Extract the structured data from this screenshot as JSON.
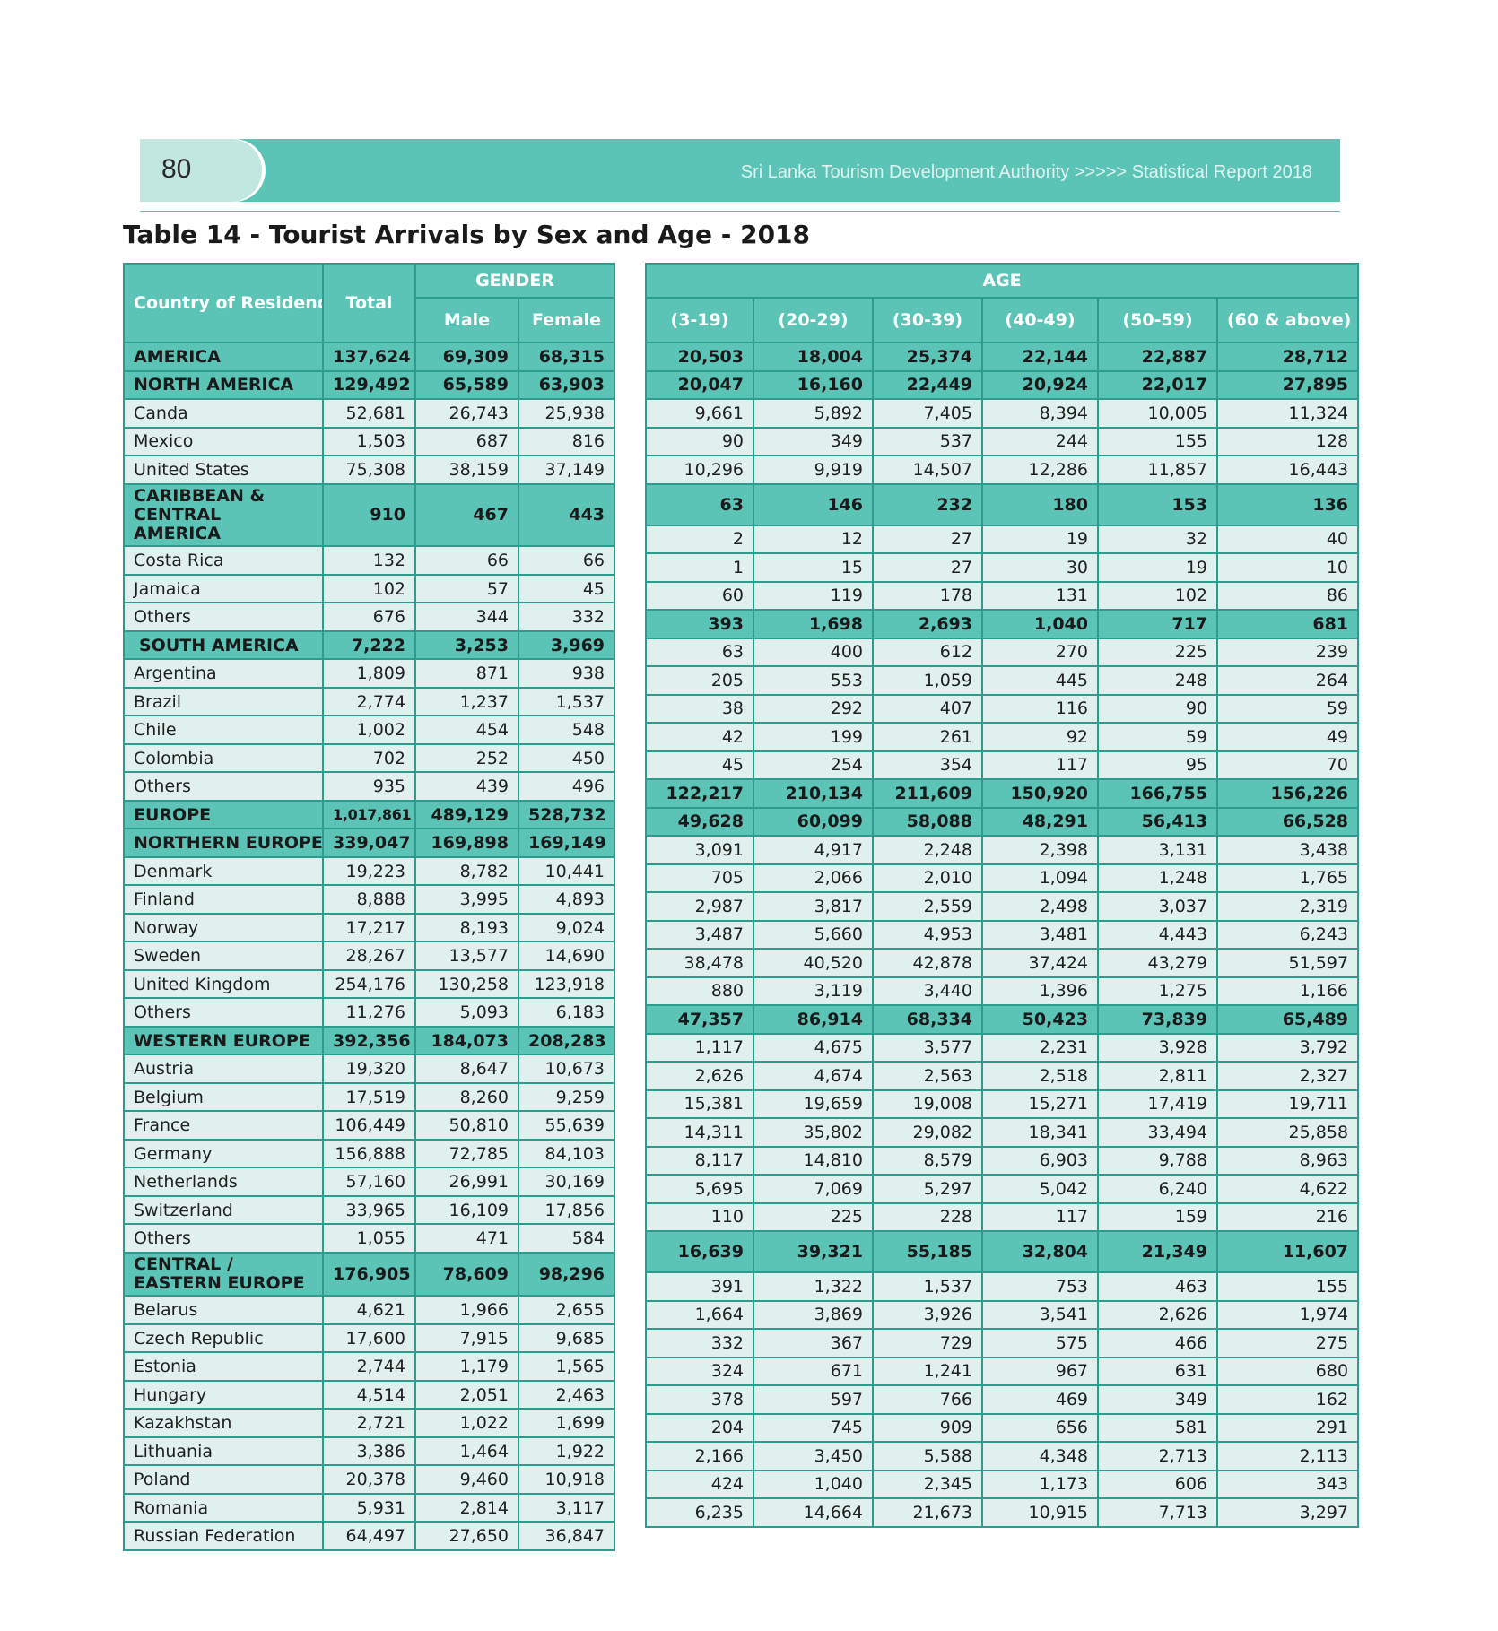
{
  "header": {
    "page_number": "80",
    "publication": "Sri Lanka Tourism Development Authority >>>>> Statistical Report 2018"
  },
  "title": "Table 14 - Tourist Arrivals by Sex and Age - 2018",
  "columns": {
    "country": "Country of Residence",
    "total": "Total",
    "gender_group": "GENDER",
    "male": "Male",
    "female": "Female",
    "age_group": "AGE",
    "age_bands": [
      "(3-19)",
      "(20-29)",
      "(30-39)",
      "(40-49)",
      "(50-59)",
      "(60 & above)"
    ]
  },
  "rows": [
    {
      "name": "AMERICA",
      "type": "region",
      "total": "137,624",
      "male": "69,309",
      "female": "68,315",
      "ages": [
        "20,503",
        "18,004",
        "25,374",
        "22,144",
        "22,887",
        "28,712"
      ]
    },
    {
      "name": "NORTH AMERICA",
      "type": "region",
      "total": "129,492",
      "male": "65,589",
      "female": "63,903",
      "ages": [
        "20,047",
        "16,160",
        "22,449",
        "20,924",
        "22,017",
        "27,895"
      ]
    },
    {
      "name": "Canda",
      "type": "country",
      "total": "52,681",
      "male": "26,743",
      "female": "25,938",
      "ages": [
        "9,661",
        "5,892",
        "7,405",
        "8,394",
        "10,005",
        "11,324"
      ]
    },
    {
      "name": "Mexico",
      "type": "country",
      "total": "1,503",
      "male": "687",
      "female": "816",
      "ages": [
        "90",
        "349",
        "537",
        "244",
        "155",
        "128"
      ]
    },
    {
      "name": "United States",
      "type": "country",
      "total": "75,308",
      "male": "38,159",
      "female": "37,149",
      "ages": [
        "10,296",
        "9,919",
        "14,507",
        "12,286",
        "11,857",
        "16,443"
      ]
    },
    {
      "name": "CARIBBEAN & CENTRAL AMERICA",
      "type": "region-wrap",
      "total": "910",
      "male": "467",
      "female": "443",
      "ages": [
        "63",
        "146",
        "232",
        "180",
        "153",
        "136"
      ]
    },
    {
      "name": "Costa Rica",
      "type": "country",
      "total": "132",
      "male": "66",
      "female": "66",
      "ages": [
        "2",
        "12",
        "27",
        "19",
        "32",
        "40"
      ]
    },
    {
      "name": "Jamaica",
      "type": "country",
      "total": "102",
      "male": "57",
      "female": "45",
      "ages": [
        "1",
        "15",
        "27",
        "30",
        "19",
        "10"
      ]
    },
    {
      "name": "Others",
      "type": "country",
      "total": "676",
      "male": "344",
      "female": "332",
      "ages": [
        "60",
        "119",
        "178",
        "131",
        "102",
        "86"
      ]
    },
    {
      "name": "SOUTH AMERICA",
      "type": "region-indent",
      "total": "7,222",
      "male": "3,253",
      "female": "3,969",
      "ages": [
        "393",
        "1,698",
        "2,693",
        "1,040",
        "717",
        "681"
      ]
    },
    {
      "name": "Argentina",
      "type": "country",
      "total": "1,809",
      "male": "871",
      "female": "938",
      "ages": [
        "63",
        "400",
        "612",
        "270",
        "225",
        "239"
      ]
    },
    {
      "name": "Brazil",
      "type": "country",
      "total": "2,774",
      "male": "1,237",
      "female": "1,537",
      "ages": [
        "205",
        "553",
        "1,059",
        "445",
        "248",
        "264"
      ]
    },
    {
      "name": "Chile",
      "type": "country",
      "total": "1,002",
      "male": "454",
      "female": "548",
      "ages": [
        "38",
        "292",
        "407",
        "116",
        "90",
        "59"
      ]
    },
    {
      "name": "Colombia",
      "type": "country",
      "total": "702",
      "male": "252",
      "female": "450",
      "ages": [
        "42",
        "199",
        "261",
        "92",
        "59",
        "49"
      ]
    },
    {
      "name": "Others",
      "type": "country",
      "total": "935",
      "male": "439",
      "female": "496",
      "ages": [
        "45",
        "254",
        "354",
        "117",
        "95",
        "70"
      ]
    },
    {
      "name": "EUROPE",
      "type": "region",
      "total": "1,017,861",
      "male": "489,129",
      "female": "528,732",
      "ages": [
        "122,217",
        "210,134",
        "211,609",
        "150,920",
        "166,755",
        "156,226"
      ]
    },
    {
      "name": "NORTHERN EUROPE",
      "type": "region",
      "total": "339,047",
      "male": "169,898",
      "female": "169,149",
      "ages": [
        "49,628",
        "60,099",
        "58,088",
        "48,291",
        "56,413",
        "66,528"
      ]
    },
    {
      "name": "Denmark",
      "type": "country",
      "total": "19,223",
      "male": "8,782",
      "female": "10,441",
      "ages": [
        "3,091",
        "4,917",
        "2,248",
        "2,398",
        "3,131",
        "3,438"
      ]
    },
    {
      "name": "Finland",
      "type": "country",
      "total": "8,888",
      "male": "3,995",
      "female": "4,893",
      "ages": [
        "705",
        "2,066",
        "2,010",
        "1,094",
        "1,248",
        "1,765"
      ]
    },
    {
      "name": "Norway",
      "type": "country",
      "total": "17,217",
      "male": "8,193",
      "female": "9,024",
      "ages": [
        "2,987",
        "3,817",
        "2,559",
        "2,498",
        "3,037",
        "2,319"
      ]
    },
    {
      "name": "Sweden",
      "type": "country",
      "total": "28,267",
      "male": "13,577",
      "female": "14,690",
      "ages": [
        "3,487",
        "5,660",
        "4,953",
        "3,481",
        "4,443",
        "6,243"
      ]
    },
    {
      "name": "United Kingdom",
      "type": "country",
      "total": "254,176",
      "male": "130,258",
      "female": "123,918",
      "ages": [
        "38,478",
        "40,520",
        "42,878",
        "37,424",
        "43,279",
        "51,597"
      ]
    },
    {
      "name": "Others",
      "type": "country",
      "total": "11,276",
      "male": "5,093",
      "female": "6,183",
      "ages": [
        "880",
        "3,119",
        "3,440",
        "1,396",
        "1,275",
        "1,166"
      ]
    },
    {
      "name": "WESTERN EUROPE",
      "type": "region",
      "total": "392,356",
      "male": "184,073",
      "female": "208,283",
      "ages": [
        "47,357",
        "86,914",
        "68,334",
        "50,423",
        "73,839",
        "65,489"
      ]
    },
    {
      "name": "Austria",
      "type": "country",
      "total": "19,320",
      "male": "8,647",
      "female": "10,673",
      "ages": [
        "1,117",
        "4,675",
        "3,577",
        "2,231",
        "3,928",
        "3,792"
      ]
    },
    {
      "name": "Belgium",
      "type": "country",
      "total": "17,519",
      "male": "8,260",
      "female": "9,259",
      "ages": [
        "2,626",
        "4,674",
        "2,563",
        "2,518",
        "2,811",
        "2,327"
      ]
    },
    {
      "name": "France",
      "type": "country",
      "total": "106,449",
      "male": "50,810",
      "female": "55,639",
      "ages": [
        "15,381",
        "19,659",
        "19,008",
        "15,271",
        "17,419",
        "19,711"
      ]
    },
    {
      "name": "Germany",
      "type": "country",
      "total": "156,888",
      "male": "72,785",
      "female": "84,103",
      "ages": [
        "14,311",
        "35,802",
        "29,082",
        "18,341",
        "33,494",
        "25,858"
      ]
    },
    {
      "name": "Netherlands",
      "type": "country",
      "total": "57,160",
      "male": "26,991",
      "female": "30,169",
      "ages": [
        "8,117",
        "14,810",
        "8,579",
        "6,903",
        "9,788",
        "8,963"
      ]
    },
    {
      "name": "Switzerland",
      "type": "country",
      "total": "33,965",
      "male": "16,109",
      "female": "17,856",
      "ages": [
        "5,695",
        "7,069",
        "5,297",
        "5,042",
        "6,240",
        "4,622"
      ]
    },
    {
      "name": "Others",
      "type": "country",
      "total": "1,055",
      "male": "471",
      "female": "584",
      "ages": [
        "110",
        "225",
        "228",
        "117",
        "159",
        "216"
      ]
    },
    {
      "name": "CENTRAL / EASTERN EUROPE",
      "type": "region-wrap",
      "total": "176,905",
      "male": "78,609",
      "female": "98,296",
      "ages": [
        "16,639",
        "39,321",
        "55,185",
        "32,804",
        "21,349",
        "11,607"
      ]
    },
    {
      "name": "Belarus",
      "type": "country",
      "total": "4,621",
      "male": "1,966",
      "female": "2,655",
      "ages": [
        "391",
        "1,322",
        "1,537",
        "753",
        "463",
        "155"
      ]
    },
    {
      "name": "Czech Republic",
      "type": "country",
      "total": "17,600",
      "male": "7,915",
      "female": "9,685",
      "ages": [
        "1,664",
        "3,869",
        "3,926",
        "3,541",
        "2,626",
        "1,974"
      ]
    },
    {
      "name": "Estonia",
      "type": "country",
      "total": "2,744",
      "male": "1,179",
      "female": "1,565",
      "ages": [
        "332",
        "367",
        "729",
        "575",
        "466",
        "275"
      ]
    },
    {
      "name": "Hungary",
      "type": "country",
      "total": "4,514",
      "male": "2,051",
      "female": "2,463",
      "ages": [
        "324",
        "671",
        "1,241",
        "967",
        "631",
        "680"
      ]
    },
    {
      "name": "Kazakhstan",
      "type": "country",
      "total": "2,721",
      "male": "1,022",
      "female": "1,699",
      "ages": [
        "378",
        "597",
        "766",
        "469",
        "349",
        "162"
      ]
    },
    {
      "name": "Lithuania",
      "type": "country",
      "total": "3,386",
      "male": "1,464",
      "female": "1,922",
      "ages": [
        "204",
        "745",
        "909",
        "656",
        "581",
        "291"
      ]
    },
    {
      "name": "Poland",
      "type": "country",
      "total": "20,378",
      "male": "9,460",
      "female": "10,918",
      "ages": [
        "2,166",
        "3,450",
        "5,588",
        "4,348",
        "2,713",
        "2,113"
      ]
    },
    {
      "name": "Romania",
      "type": "country",
      "total": "5,931",
      "male": "2,814",
      "female": "3,117",
      "ages": [
        "424",
        "1,040",
        "2,345",
        "1,173",
        "606",
        "343"
      ]
    },
    {
      "name": "Russian Federation",
      "type": "country",
      "total": "64,497",
      "male": "27,650",
      "female": "36,847",
      "ages": [
        "6,235",
        "14,664",
        "21,673",
        "10,915",
        "7,713",
        "3,297"
      ]
    }
  ]
}
